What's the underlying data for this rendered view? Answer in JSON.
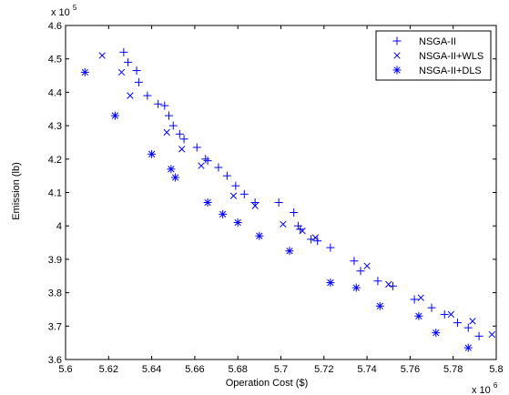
{
  "chart_data": {
    "type": "scatter",
    "xlabel": "Operation Cost ($)",
    "ylabel": "Emission (lb)",
    "x_multiplier_label": "x 10",
    "x_multiplier_exp": "6",
    "y_multiplier_label": "x 10",
    "y_multiplier_exp": "5",
    "xlim": [
      5.6,
      5.8
    ],
    "ylim": [
      3.6,
      4.6
    ],
    "x_ticks": [
      "5.6",
      "5.62",
      "5.64",
      "5.66",
      "5.68",
      "5.7",
      "5.72",
      "5.74",
      "5.76",
      "5.78",
      "5.8"
    ],
    "y_ticks": [
      "3.6",
      "3.7",
      "3.8",
      "3.9",
      "4",
      "4.1",
      "4.2",
      "4.3",
      "4.4",
      "4.5",
      "4.6"
    ],
    "grid": false,
    "legend_position": "top-right",
    "color": "#0000ff",
    "series": [
      {
        "name": "NSGA-II",
        "marker": "plus",
        "points": [
          [
            5.627,
            4.52
          ],
          [
            5.629,
            4.49
          ],
          [
            5.633,
            4.465
          ],
          [
            5.634,
            4.43
          ],
          [
            5.638,
            4.39
          ],
          [
            5.643,
            4.365
          ],
          [
            5.646,
            4.36
          ],
          [
            5.648,
            4.33
          ],
          [
            5.65,
            4.3
          ],
          [
            5.653,
            4.275
          ],
          [
            5.655,
            4.26
          ],
          [
            5.661,
            4.235
          ],
          [
            5.665,
            4.2
          ],
          [
            5.666,
            4.195
          ],
          [
            5.671,
            4.175
          ],
          [
            5.675,
            4.15
          ],
          [
            5.679,
            4.12
          ],
          [
            5.683,
            4.095
          ],
          [
            5.688,
            4.07
          ],
          [
            5.699,
            4.07
          ],
          [
            5.706,
            4.04
          ],
          [
            5.708,
            4.0
          ],
          [
            5.709,
            3.99
          ],
          [
            5.714,
            3.96
          ],
          [
            5.717,
            3.955
          ],
          [
            5.723,
            3.935
          ],
          [
            5.734,
            3.895
          ],
          [
            5.737,
            3.865
          ],
          [
            5.745,
            3.835
          ],
          [
            5.752,
            3.82
          ],
          [
            5.762,
            3.78
          ],
          [
            5.77,
            3.755
          ],
          [
            5.776,
            3.735
          ],
          [
            5.782,
            3.71
          ],
          [
            5.787,
            3.695
          ],
          [
            5.792,
            3.67
          ]
        ]
      },
      {
        "name": "NSGA-II+WLS",
        "marker": "x",
        "points": [
          [
            5.617,
            4.51
          ],
          [
            5.626,
            4.46
          ],
          [
            5.63,
            4.39
          ],
          [
            5.647,
            4.28
          ],
          [
            5.654,
            4.23
          ],
          [
            5.663,
            4.18
          ],
          [
            5.678,
            4.09
          ],
          [
            5.688,
            4.06
          ],
          [
            5.701,
            4.005
          ],
          [
            5.71,
            3.985
          ],
          [
            5.716,
            3.965
          ],
          [
            5.74,
            3.88
          ],
          [
            5.75,
            3.825
          ],
          [
            5.765,
            3.785
          ],
          [
            5.779,
            3.735
          ],
          [
            5.789,
            3.715
          ],
          [
            5.798,
            3.675
          ]
        ]
      },
      {
        "name": "NSGA-II+DLS",
        "marker": "star",
        "points": [
          [
            5.609,
            4.46
          ],
          [
            5.623,
            4.33
          ],
          [
            5.64,
            4.215
          ],
          [
            5.649,
            4.17
          ],
          [
            5.651,
            4.145
          ],
          [
            5.666,
            4.07
          ],
          [
            5.673,
            4.035
          ],
          [
            5.68,
            4.01
          ],
          [
            5.69,
            3.97
          ],
          [
            5.704,
            3.925
          ],
          [
            5.723,
            3.83
          ],
          [
            5.735,
            3.815
          ],
          [
            5.746,
            3.76
          ],
          [
            5.764,
            3.73
          ],
          [
            5.772,
            3.68
          ],
          [
            5.787,
            3.635
          ]
        ]
      }
    ]
  }
}
